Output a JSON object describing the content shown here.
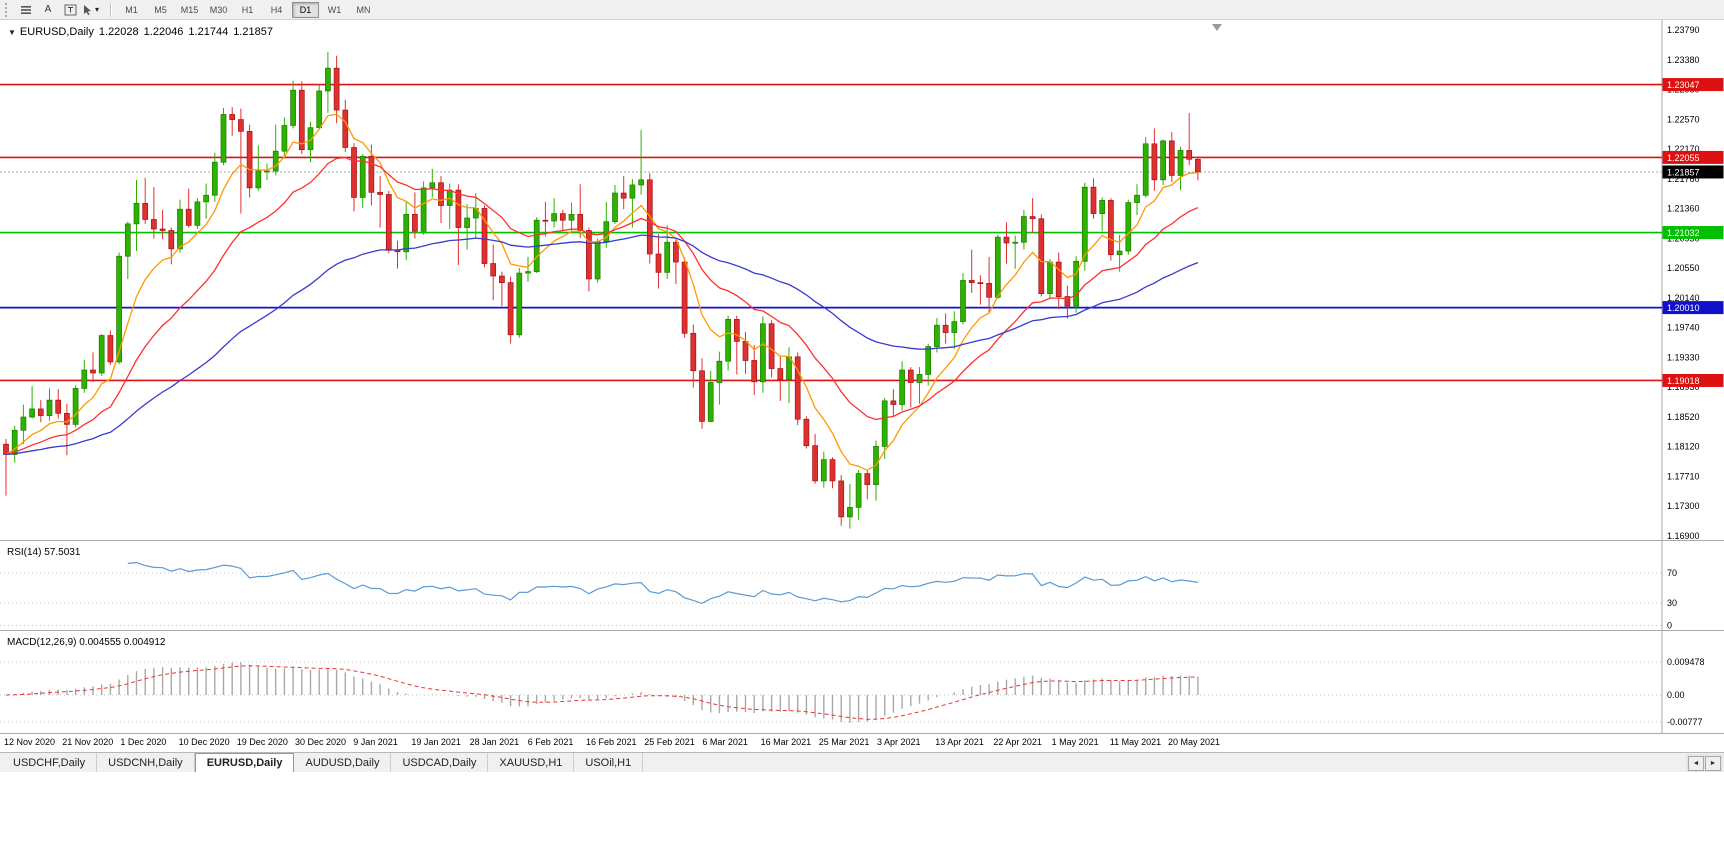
{
  "icons": {
    "dropdown": "▼",
    "tab_scroll_left": "◄",
    "tab_scroll_right": "►",
    "toolbar_caret": "▾"
  },
  "toolbar": {
    "a_label": "A",
    "timeframes": [
      "M1",
      "M5",
      "M15",
      "M30",
      "H1",
      "H4",
      "D1",
      "W1",
      "MN"
    ],
    "active_timeframe": "D1"
  },
  "chart": {
    "title": "EURUSD,Daily",
    "ohlc": {
      "open": "1.22028",
      "high": "1.22046",
      "low": "1.21744",
      "close": "1.21857"
    },
    "price_axis_labels": [
      "1.23790",
      "1.23380",
      "1.22980",
      "1.22570",
      "1.22170",
      "1.21760",
      "1.21360",
      "1.20950",
      "1.20550",
      "1.20140",
      "1.19740",
      "1.19330",
      "1.18930",
      "1.18520",
      "1.18120",
      "1.17710",
      "1.17300",
      "1.16900"
    ],
    "hlines": [
      {
        "price": 1.23047,
        "label": "1.23047",
        "color": "#dd1111"
      },
      {
        "price": 1.22055,
        "label": "1.22055",
        "color": "#dd1111"
      },
      {
        "price": 1.21032,
        "label": "1.21032",
        "color": "#00c000"
      },
      {
        "price": 1.2001,
        "label": "1.20010",
        "color": "#1111cc"
      },
      {
        "price": 1.19018,
        "label": "1.19018",
        "color": "#dd1111"
      }
    ],
    "current_price": {
      "value": 1.21857,
      "label": "1.21857",
      "badge_color": "#000000"
    },
    "date_labels": [
      "12 Nov 2020",
      "21 Nov 2020",
      "1 Dec 2020",
      "10 Dec 2020",
      "19 Dec 2020",
      "30 Dec 2020",
      "9 Jan 2021",
      "19 Jan 2021",
      "28 Jan 2021",
      "6 Feb 2021",
      "16 Feb 2021",
      "25 Feb 2021",
      "6 Mar 2021",
      "16 Mar 2021",
      "25 Mar 2021",
      "3 Apr 2021",
      "13 Apr 2021",
      "22 Apr 2021",
      "1 May 2021",
      "11 May 2021",
      "20 May 2021"
    ]
  },
  "rsi": {
    "label": "RSI(14) 57.5031",
    "level_labels": [
      "70",
      "30",
      "0"
    ],
    "levels": [
      70,
      30,
      0
    ],
    "color": "#5a9bd4"
  },
  "macd": {
    "label": "MACD(12,26,9) 0.004555 0.004912",
    "level_labels": [
      "0.009478",
      "0.00",
      "-0.00777"
    ],
    "levels": [
      0.009478,
      0,
      -0.00777
    ]
  },
  "tabs": [
    "USDCHF,Daily",
    "USDCNH,Daily",
    "EURUSD,Daily",
    "AUDUSD,Daily",
    "USDCAD,Daily",
    "XAUUSD,H1",
    "USOil,H1"
  ],
  "active_tab_index": 2,
  "colors": {
    "candle_up": "#2db200",
    "candle_up_border": "#1d7a00",
    "candle_down": "#e03131",
    "candle_down_border": "#a11212"
  },
  "chart_data": {
    "type": "candlestick",
    "symbol": "EURUSD",
    "timeframe": "Daily",
    "price_range": [
      1.169,
      1.2379
    ],
    "overlays": [
      {
        "name": "ma-fast",
        "period": 8,
        "color": "#ff9900"
      },
      {
        "name": "ma-mid",
        "period": 20,
        "color": "#ff3030"
      },
      {
        "name": "ma-slow",
        "period": 55,
        "color": "#3a3ad0"
      }
    ],
    "indicators": [
      {
        "name": "RSI",
        "params": [
          14
        ],
        "current": 57.5031
      },
      {
        "name": "MACD",
        "params": [
          12,
          26,
          9
        ],
        "current": [
          0.004555,
          0.004912
        ]
      }
    ],
    "candles": [
      [
        1.1815,
        1.1822,
        1.1745,
        1.1801
      ],
      [
        1.1801,
        1.184,
        1.179,
        1.1834
      ],
      [
        1.1834,
        1.1869,
        1.1815,
        1.1852
      ],
      [
        1.1852,
        1.1894,
        1.185,
        1.1863
      ],
      [
        1.1863,
        1.1875,
        1.1845,
        1.1854
      ],
      [
        1.1854,
        1.1891,
        1.1847,
        1.1875
      ],
      [
        1.1875,
        1.189,
        1.185,
        1.1857
      ],
      [
        1.1857,
        1.187,
        1.18,
        1.1842
      ],
      [
        1.1842,
        1.1895,
        1.1838,
        1.1891
      ],
      [
        1.1891,
        1.193,
        1.1885,
        1.1916
      ],
      [
        1.1916,
        1.194,
        1.19,
        1.1912
      ],
      [
        1.1912,
        1.1965,
        1.1908,
        1.1963
      ],
      [
        1.1963,
        1.197,
        1.1923,
        1.1927
      ],
      [
        1.1927,
        1.2076,
        1.1924,
        1.2071
      ],
      [
        1.2071,
        1.2118,
        1.204,
        1.2115
      ],
      [
        1.2115,
        1.2175,
        1.2078,
        1.2143
      ],
      [
        1.2143,
        1.2178,
        1.2115,
        1.2121
      ],
      [
        1.2121,
        1.2165,
        1.2095,
        1.2108
      ],
      [
        1.2108,
        1.2134,
        1.2094,
        1.2106
      ],
      [
        1.2106,
        1.211,
        1.206,
        1.2081
      ],
      [
        1.2081,
        1.2148,
        1.2076,
        1.2135
      ],
      [
        1.2135,
        1.2163,
        1.211,
        1.2113
      ],
      [
        1.2113,
        1.215,
        1.2108,
        1.2145
      ],
      [
        1.2145,
        1.217,
        1.2122,
        1.2154
      ],
      [
        1.2154,
        1.2212,
        1.2145,
        1.2199
      ],
      [
        1.2199,
        1.2273,
        1.2195,
        1.2264
      ],
      [
        1.2264,
        1.2274,
        1.2235,
        1.2257
      ],
      [
        1.2257,
        1.2272,
        1.2129,
        1.2241
      ],
      [
        1.2241,
        1.225,
        1.2151,
        1.2164
      ],
      [
        1.2164,
        1.2222,
        1.216,
        1.2187
      ],
      [
        1.2187,
        1.2197,
        1.2175,
        1.2187
      ],
      [
        1.2187,
        1.225,
        1.2181,
        1.2214
      ],
      [
        1.2214,
        1.226,
        1.2205,
        1.2249
      ],
      [
        1.2249,
        1.231,
        1.2245,
        1.2297
      ],
      [
        1.2297,
        1.2309,
        1.221,
        1.2216
      ],
      [
        1.2216,
        1.2254,
        1.2199,
        1.2246
      ],
      [
        1.2246,
        1.2305,
        1.2244,
        1.2296
      ],
      [
        1.2296,
        1.2349,
        1.2266,
        1.2327
      ],
      [
        1.2327,
        1.2344,
        1.2252,
        1.227
      ],
      [
        1.227,
        1.2284,
        1.2213,
        1.2219
      ],
      [
        1.2219,
        1.2225,
        1.2132,
        1.2151
      ],
      [
        1.2151,
        1.221,
        1.2137,
        1.2207
      ],
      [
        1.2207,
        1.2223,
        1.214,
        1.2158
      ],
      [
        1.2158,
        1.218,
        1.211,
        1.2155
      ],
      [
        1.2155,
        1.216,
        1.2075,
        1.2079
      ],
      [
        1.2079,
        1.2092,
        1.2054,
        1.2077
      ],
      [
        1.2077,
        1.2145,
        1.2066,
        1.2128
      ],
      [
        1.2128,
        1.2158,
        1.2095,
        1.2105
      ],
      [
        1.2105,
        1.2173,
        1.21,
        1.2164
      ],
      [
        1.2164,
        1.219,
        1.2151,
        1.2171
      ],
      [
        1.2171,
        1.218,
        1.2116,
        1.214
      ],
      [
        1.214,
        1.217,
        1.2108,
        1.2161
      ],
      [
        1.2161,
        1.2169,
        1.2059,
        1.211
      ],
      [
        1.211,
        1.2142,
        1.208,
        1.2123
      ],
      [
        1.2123,
        1.2157,
        1.2095,
        1.2136
      ],
      [
        1.2136,
        1.214,
        1.2056,
        1.2061
      ],
      [
        1.2061,
        1.2087,
        1.2011,
        1.2044
      ],
      [
        1.2044,
        1.205,
        1.2003,
        1.2035
      ],
      [
        1.2035,
        1.2043,
        1.1952,
        1.1964
      ],
      [
        1.1964,
        1.2055,
        1.196,
        1.2048
      ],
      [
        1.2048,
        1.207,
        1.2036,
        1.205
      ],
      [
        1.205,
        1.2124,
        1.2048,
        1.212
      ],
      [
        1.212,
        1.2145,
        1.2098,
        1.2119
      ],
      [
        1.2119,
        1.215,
        1.211,
        1.2129
      ],
      [
        1.2129,
        1.2134,
        1.2105,
        1.212
      ],
      [
        1.212,
        1.2144,
        1.2105,
        1.2128
      ],
      [
        1.2128,
        1.2169,
        1.2096,
        1.2106
      ],
      [
        1.2106,
        1.211,
        1.2023,
        1.204
      ],
      [
        1.204,
        1.2095,
        1.2035,
        1.2091
      ],
      [
        1.2091,
        1.2145,
        1.2082,
        1.2118
      ],
      [
        1.2118,
        1.2168,
        1.2115,
        1.2157
      ],
      [
        1.2157,
        1.218,
        1.2135,
        1.215
      ],
      [
        1.215,
        1.2176,
        1.211,
        1.2168
      ],
      [
        1.2168,
        1.2243,
        1.2155,
        1.2175
      ],
      [
        1.2175,
        1.2184,
        1.2061,
        1.2074
      ],
      [
        1.2074,
        1.2101,
        1.2027,
        1.2049
      ],
      [
        1.2049,
        1.2113,
        1.204,
        1.209
      ],
      [
        1.209,
        1.2094,
        1.2033,
        1.2063
      ],
      [
        1.2063,
        1.2069,
        1.196,
        1.1966
      ],
      [
        1.1966,
        1.1978,
        1.1892,
        1.1915
      ],
      [
        1.1915,
        1.1932,
        1.1836,
        1.1846
      ],
      [
        1.1846,
        1.1915,
        1.1845,
        1.1899
      ],
      [
        1.1899,
        1.1941,
        1.1869,
        1.1928
      ],
      [
        1.1928,
        1.199,
        1.1915,
        1.1985
      ],
      [
        1.1985,
        1.199,
        1.191,
        1.1955
      ],
      [
        1.1955,
        1.1968,
        1.1911,
        1.1929
      ],
      [
        1.1929,
        1.195,
        1.1882,
        1.19
      ],
      [
        1.19,
        1.1989,
        1.1885,
        1.1979
      ],
      [
        1.1979,
        1.1984,
        1.1906,
        1.1918
      ],
      [
        1.1918,
        1.1935,
        1.1874,
        1.1903
      ],
      [
        1.1903,
        1.1947,
        1.1871,
        1.1934
      ],
      [
        1.1934,
        1.194,
        1.1841,
        1.1849
      ],
      [
        1.1849,
        1.1853,
        1.1809,
        1.1813
      ],
      [
        1.1813,
        1.1829,
        1.1761,
        1.1765
      ],
      [
        1.1765,
        1.1805,
        1.1756,
        1.1794
      ],
      [
        1.1794,
        1.1797,
        1.1755,
        1.1765
      ],
      [
        1.1765,
        1.1773,
        1.1704,
        1.1716
      ],
      [
        1.1716,
        1.1761,
        1.17,
        1.1729
      ],
      [
        1.1729,
        1.178,
        1.1712,
        1.1775
      ],
      [
        1.1775,
        1.178,
        1.174,
        1.176
      ],
      [
        1.176,
        1.182,
        1.1738,
        1.1812
      ],
      [
        1.1812,
        1.1878,
        1.1795,
        1.1874
      ],
      [
        1.1874,
        1.189,
        1.1852,
        1.1869
      ],
      [
        1.1869,
        1.1928,
        1.1861,
        1.1916
      ],
      [
        1.1916,
        1.192,
        1.1865,
        1.1899
      ],
      [
        1.1899,
        1.192,
        1.187,
        1.191
      ],
      [
        1.191,
        1.1952,
        1.1895,
        1.1948
      ],
      [
        1.1948,
        1.1987,
        1.194,
        1.1977
      ],
      [
        1.1977,
        1.1993,
        1.1952,
        1.1967
      ],
      [
        1.1967,
        1.1996,
        1.1945,
        1.1982
      ],
      [
        1.1982,
        1.2048,
        1.1978,
        1.2038
      ],
      [
        1.2038,
        1.208,
        1.2021,
        1.2035
      ],
      [
        1.2035,
        1.2045,
        1.2005,
        1.2034
      ],
      [
        1.2034,
        1.207,
        1.1994,
        1.2015
      ],
      [
        1.2015,
        1.21,
        1.2013,
        1.2097
      ],
      [
        1.2097,
        1.2117,
        1.2061,
        1.2089
      ],
      [
        1.2089,
        1.2099,
        1.2054,
        1.209
      ],
      [
        1.209,
        1.2134,
        1.208,
        1.2125
      ],
      [
        1.2125,
        1.215,
        1.2103,
        1.2122
      ],
      [
        1.2122,
        1.2128,
        1.2016,
        1.202
      ],
      [
        1.202,
        1.2067,
        1.2013,
        1.2063
      ],
      [
        1.2063,
        1.2076,
        1.1999,
        1.2016
      ],
      [
        1.2016,
        1.2031,
        1.1986,
        1.2003
      ],
      [
        1.2003,
        1.2071,
        1.1994,
        1.2064
      ],
      [
        1.2064,
        1.2171,
        1.2051,
        1.2165
      ],
      [
        1.2165,
        1.2177,
        1.2122,
        1.2129
      ],
      [
        1.2129,
        1.2151,
        1.2105,
        1.2147
      ],
      [
        1.2147,
        1.215,
        1.2065,
        1.2073
      ],
      [
        1.2073,
        1.21,
        1.205,
        1.2078
      ],
      [
        1.2078,
        1.2148,
        1.2073,
        1.2144
      ],
      [
        1.2144,
        1.2169,
        1.2127,
        1.2154
      ],
      [
        1.2154,
        1.2233,
        1.2151,
        1.2224
      ],
      [
        1.2224,
        1.2245,
        1.216,
        1.2175
      ],
      [
        1.2175,
        1.223,
        1.2168,
        1.2228
      ],
      [
        1.2228,
        1.224,
        1.2172,
        1.2181
      ],
      [
        1.2181,
        1.222,
        1.2161,
        1.2215
      ],
      [
        1.2215,
        1.2266,
        1.2195,
        1.2203
      ],
      [
        1.22028,
        1.22046,
        1.21744,
        1.21857
      ]
    ]
  }
}
